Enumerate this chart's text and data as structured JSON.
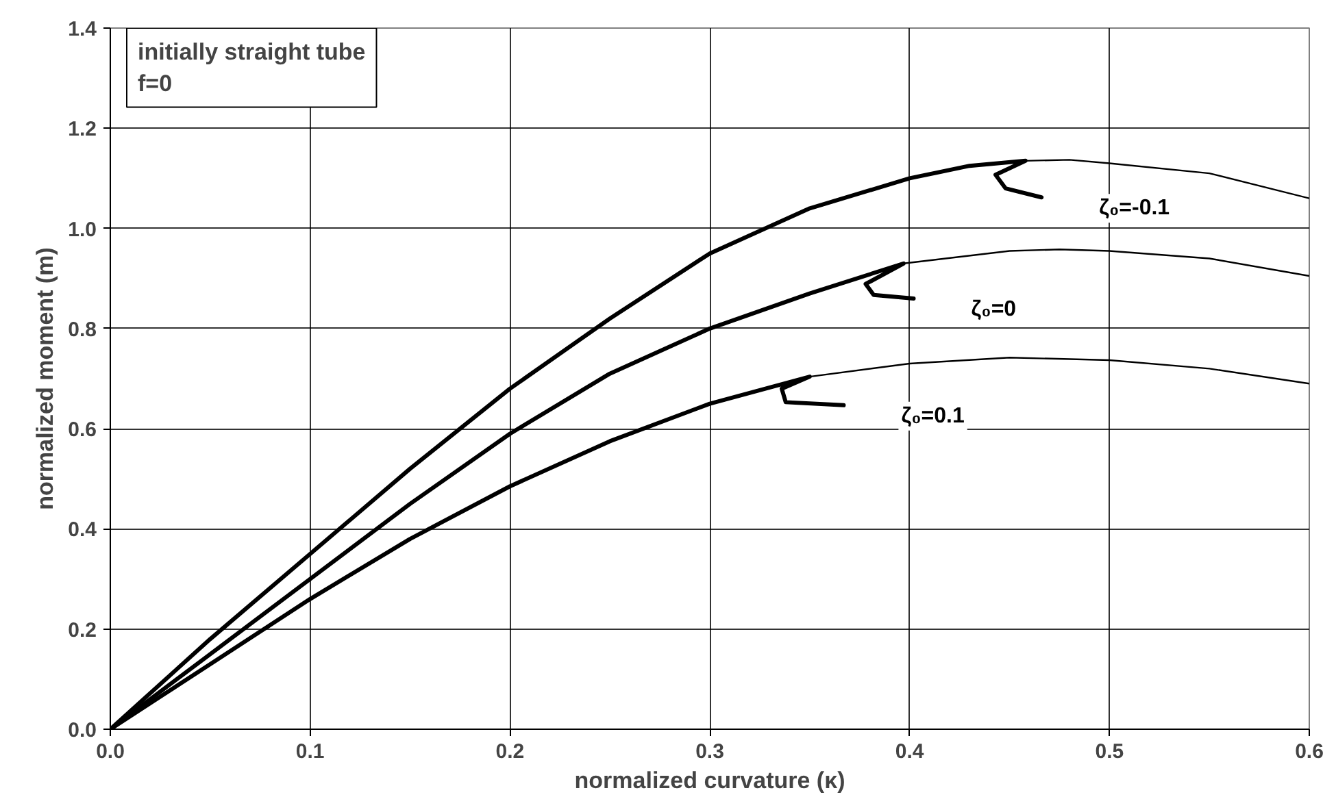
{
  "chart_data": {
    "type": "line",
    "xlabel": "normalized curvature (κ)",
    "ylabel": "normalized moment (m)",
    "xlim": [
      0,
      0.6
    ],
    "ylim": [
      0,
      1.4
    ],
    "xticks": [
      {
        "value": 0,
        "label": "0.0"
      },
      0.1,
      0.2,
      0.3,
      0.4,
      0.5,
      0.6
    ],
    "yticks": [
      {
        "value": 0,
        "label": "0.0"
      },
      0.2,
      0.4,
      0.6,
      0.8,
      {
        "value": 1,
        "label": "1.0"
      },
      1.2,
      1.4
    ],
    "grid": true,
    "line_style": "solid",
    "series": [
      {
        "name": "ζ₀=-0.1",
        "color": "#000000",
        "x": [
          0,
          0.05,
          0.1,
          0.15,
          0.2,
          0.25,
          0.3,
          0.35,
          0.4,
          0.43,
          0.458,
          0.443,
          0.448,
          0.466
        ],
        "values": [
          0,
          0.18,
          0.35,
          0.52,
          0.68,
          0.82,
          0.95,
          1.04,
          1.1,
          1.125,
          1.135,
          1.107,
          1.08,
          1.062
        ]
      },
      {
        "color": "#000000",
        "x": [
          0.458,
          0.48,
          0.5,
          0.55,
          0.6
        ],
        "values": [
          1.135,
          1.137,
          1.13,
          1.11,
          1.06
        ]
      },
      {
        "name": "ζ₀=0",
        "color": "#000000",
        "x": [
          0,
          0.05,
          0.1,
          0.15,
          0.2,
          0.25,
          0.3,
          0.35,
          0.397,
          0.378,
          0.382,
          0.402
        ],
        "values": [
          0,
          0.15,
          0.3,
          0.45,
          0.59,
          0.71,
          0.8,
          0.87,
          0.93,
          0.889,
          0.867,
          0.86
        ]
      },
      {
        "color": "#000000",
        "x": [
          0.397,
          0.45,
          0.475,
          0.5,
          0.55,
          0.6
        ],
        "values": [
          0.93,
          0.955,
          0.958,
          0.955,
          0.94,
          0.905
        ]
      },
      {
        "name": "ζ₀=0.1",
        "color": "#000000",
        "x": [
          0,
          0.05,
          0.1,
          0.15,
          0.2,
          0.25,
          0.3,
          0.35,
          0.336,
          0.338,
          0.367
        ],
        "values": [
          0,
          0.13,
          0.26,
          0.38,
          0.485,
          0.575,
          0.65,
          0.704,
          0.68,
          0.653,
          0.647
        ]
      },
      {
        "color": "#000000",
        "x": [
          0.35,
          0.4,
          0.45,
          0.5,
          0.55,
          0.6
        ],
        "values": [
          0.704,
          0.73,
          0.742,
          0.737,
          0.72,
          0.69
        ]
      }
    ],
    "annotations": [
      "initially straight tube\nf=0"
    ]
  }
}
